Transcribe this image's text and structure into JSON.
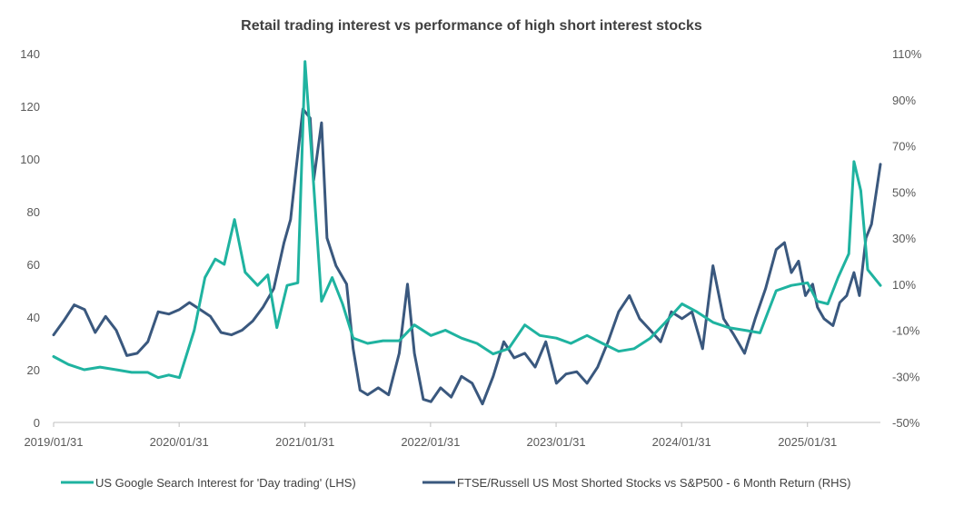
{
  "chart_data": {
    "type": "line",
    "title": "Retail trading interest vs performance of high short interest stocks",
    "xlabel": "",
    "x_range": [
      "2019/01/31",
      "2025/08/31"
    ],
    "x_tick_labels": [
      "2019/01/31",
      "2020/01/31",
      "2021/01/31",
      "2022/01/31",
      "2023/01/31",
      "2024/01/31",
      "2025/01/31"
    ],
    "y_left": {
      "range": [
        0,
        140
      ],
      "ticks": [
        "0",
        "20",
        "40",
        "60",
        "80",
        "100",
        "120",
        "140"
      ]
    },
    "y_right": {
      "range": [
        -0.5,
        1.1
      ],
      "ticks": [
        "-50%",
        "-30%",
        "-10%",
        "10%",
        "30%",
        "50%",
        "70%",
        "90%",
        "110%"
      ]
    },
    "grid": false,
    "legend_position": "bottom",
    "series": [
      {
        "name": "US Google Search Interest for 'Day trading' (LHS)",
        "axis": "left",
        "color": "#1fb3a0",
        "points": [
          [
            "2019/01/31",
            25
          ],
          [
            "2019/03/15",
            22
          ],
          [
            "2019/04/30",
            20
          ],
          [
            "2019/06/15",
            21
          ],
          [
            "2019/08/01",
            20
          ],
          [
            "2019/09/15",
            19
          ],
          [
            "2019/11/01",
            19
          ],
          [
            "2019/12/01",
            17
          ],
          [
            "2020/01/01",
            18
          ],
          [
            "2020/02/01",
            17
          ],
          [
            "2020/03/15",
            35
          ],
          [
            "2020/04/15",
            55
          ],
          [
            "2020/05/15",
            62
          ],
          [
            "2020/06/10",
            60
          ],
          [
            "2020/07/10",
            77
          ],
          [
            "2020/08/10",
            57
          ],
          [
            "2020/09/15",
            52
          ],
          [
            "2020/10/15",
            56
          ],
          [
            "2020/11/10",
            36
          ],
          [
            "2020/12/10",
            52
          ],
          [
            "2021/01/10",
            53
          ],
          [
            "2021/01/31",
            137
          ],
          [
            "2021/02/20",
            100
          ],
          [
            "2021/03/20",
            46
          ],
          [
            "2021/04/20",
            55
          ],
          [
            "2021/05/20",
            45
          ],
          [
            "2021/06/20",
            32
          ],
          [
            "2021/08/01",
            30
          ],
          [
            "2021/09/15",
            31
          ],
          [
            "2021/11/01",
            31
          ],
          [
            "2021/12/15",
            37
          ],
          [
            "2022/02/01",
            33
          ],
          [
            "2022/03/15",
            35
          ],
          [
            "2022/05/01",
            32
          ],
          [
            "2022/06/15",
            30
          ],
          [
            "2022/08/01",
            26
          ],
          [
            "2022/09/15",
            28
          ],
          [
            "2022/11/01",
            37
          ],
          [
            "2022/12/15",
            33
          ],
          [
            "2023/02/01",
            32
          ],
          [
            "2023/03/15",
            30
          ],
          [
            "2023/05/01",
            33
          ],
          [
            "2023/06/15",
            30
          ],
          [
            "2023/08/01",
            27
          ],
          [
            "2023/09/15",
            28
          ],
          [
            "2023/11/01",
            32
          ],
          [
            "2023/12/15",
            38
          ],
          [
            "2024/02/01",
            45
          ],
          [
            "2024/03/15",
            42
          ],
          [
            "2024/05/01",
            38
          ],
          [
            "2024/06/15",
            36
          ],
          [
            "2024/08/01",
            35
          ],
          [
            "2024/09/15",
            34
          ],
          [
            "2024/11/01",
            50
          ],
          [
            "2024/12/15",
            52
          ],
          [
            "2025/01/31",
            53
          ],
          [
            "2025/02/28",
            46
          ],
          [
            "2025/03/31",
            45
          ],
          [
            "2025/04/30",
            55
          ],
          [
            "2025/05/31",
            64
          ],
          [
            "2025/06/15",
            99
          ],
          [
            "2025/07/05",
            88
          ],
          [
            "2025/07/25",
            58
          ],
          [
            "2025/08/31",
            52
          ]
        ]
      },
      {
        "name": "FTSE/Russell US Most Shorted Stocks vs S&P500 - 6 Month Return (RHS)",
        "axis": "right",
        "color": "#3a587e",
        "points": [
          [
            "2019/01/31",
            -12
          ],
          [
            "2019/03/01",
            -6
          ],
          [
            "2019/04/01",
            1
          ],
          [
            "2019/05/01",
            -1
          ],
          [
            "2019/06/01",
            -11
          ],
          [
            "2019/07/01",
            -4
          ],
          [
            "2019/08/01",
            -10
          ],
          [
            "2019/09/01",
            -21
          ],
          [
            "2019/10/01",
            -20
          ],
          [
            "2019/11/01",
            -15
          ],
          [
            "2019/12/01",
            -2
          ],
          [
            "2020/01/01",
            -3
          ],
          [
            "2020/02/01",
            -1
          ],
          [
            "2020/03/01",
            2
          ],
          [
            "2020/04/01",
            -1
          ],
          [
            "2020/05/01",
            -4
          ],
          [
            "2020/06/01",
            -11
          ],
          [
            "2020/07/01",
            -12
          ],
          [
            "2020/08/01",
            -10
          ],
          [
            "2020/09/01",
            -6
          ],
          [
            "2020/10/01",
            0
          ],
          [
            "2020/11/01",
            8
          ],
          [
            "2020/12/01",
            28
          ],
          [
            "2020/12/20",
            38
          ],
          [
            "2021/01/05",
            60
          ],
          [
            "2021/01/25",
            86
          ],
          [
            "2021/02/15",
            82
          ],
          [
            "2021/02/25",
            55
          ],
          [
            "2021/03/20",
            80
          ],
          [
            "2021/04/05",
            30
          ],
          [
            "2021/05/01",
            18
          ],
          [
            "2021/06/01",
            10
          ],
          [
            "2021/06/20",
            -18
          ],
          [
            "2021/07/10",
            -36
          ],
          [
            "2021/08/01",
            -38
          ],
          [
            "2021/09/01",
            -35
          ],
          [
            "2021/10/01",
            -38
          ],
          [
            "2021/11/01",
            -20
          ],
          [
            "2021/11/25",
            10
          ],
          [
            "2021/12/15",
            -20
          ],
          [
            "2022/01/10",
            -40
          ],
          [
            "2022/02/01",
            -41
          ],
          [
            "2022/03/01",
            -35
          ],
          [
            "2022/04/01",
            -39
          ],
          [
            "2022/05/01",
            -30
          ],
          [
            "2022/06/01",
            -33
          ],
          [
            "2022/07/01",
            -42
          ],
          [
            "2022/08/01",
            -30
          ],
          [
            "2022/09/01",
            -15
          ],
          [
            "2022/10/01",
            -22
          ],
          [
            "2022/11/01",
            -20
          ],
          [
            "2022/12/01",
            -26
          ],
          [
            "2023/01/01",
            -15
          ],
          [
            "2023/02/01",
            -33
          ],
          [
            "2023/03/01",
            -29
          ],
          [
            "2023/04/01",
            -28
          ],
          [
            "2023/05/01",
            -33
          ],
          [
            "2023/06/01",
            -26
          ],
          [
            "2023/07/01",
            -15
          ],
          [
            "2023/08/01",
            -2
          ],
          [
            "2023/09/01",
            5
          ],
          [
            "2023/10/01",
            -5
          ],
          [
            "2023/11/01",
            -10
          ],
          [
            "2023/12/01",
            -15
          ],
          [
            "2024/01/01",
            -2
          ],
          [
            "2024/02/01",
            -5
          ],
          [
            "2024/03/01",
            -2
          ],
          [
            "2024/04/01",
            -18
          ],
          [
            "2024/05/01",
            18
          ],
          [
            "2024/06/01",
            -5
          ],
          [
            "2024/07/01",
            -12
          ],
          [
            "2024/08/01",
            -20
          ],
          [
            "2024/09/01",
            -5
          ],
          [
            "2024/10/01",
            8
          ],
          [
            "2024/11/01",
            25
          ],
          [
            "2024/11/25",
            28
          ],
          [
            "2024/12/15",
            15
          ],
          [
            "2025/01/05",
            20
          ],
          [
            "2025/01/25",
            5
          ],
          [
            "2025/02/15",
            10
          ],
          [
            "2025/03/01",
            0
          ],
          [
            "2025/03/20",
            -5
          ],
          [
            "2025/04/15",
            -8
          ],
          [
            "2025/05/05",
            2
          ],
          [
            "2025/05/25",
            5
          ],
          [
            "2025/06/15",
            15
          ],
          [
            "2025/07/01",
            5
          ],
          [
            "2025/07/20",
            30
          ],
          [
            "2025/08/05",
            36
          ],
          [
            "2025/08/31",
            62
          ]
        ]
      }
    ]
  }
}
